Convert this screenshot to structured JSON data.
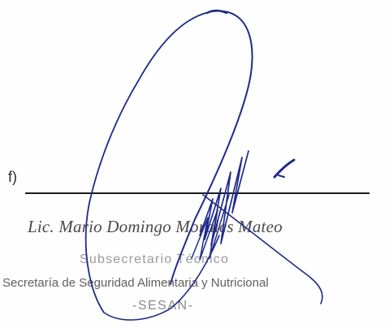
{
  "signature_block": {
    "field_label": "f)",
    "name": "Lic. Mario Domingo Morales Mateo",
    "title": "Subsecretario Técnico",
    "organization": "Secretaría de Seguridad Alimentaria y Nutricional",
    "acronym": "-SESAN-"
  },
  "colors": {
    "ink": "#1f2a8a",
    "text": "#5f5f5f"
  }
}
